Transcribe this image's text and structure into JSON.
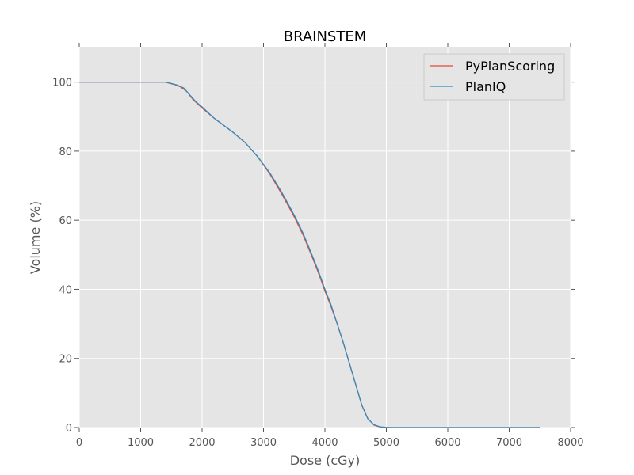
{
  "chart_data": {
    "type": "line",
    "title": "BRAINSTEM",
    "xlabel": "Dose (cGy)",
    "ylabel": "Volume (%)",
    "xlim": [
      0,
      8000
    ],
    "ylim": [
      0,
      110
    ],
    "xticks": [
      0,
      1000,
      2000,
      3000,
      4000,
      5000,
      6000,
      7000,
      8000
    ],
    "yticks": [
      0,
      20,
      40,
      60,
      80,
      100
    ],
    "grid": true,
    "legend_position": "top-right",
    "background_color": "#e5e5e5",
    "series": [
      {
        "name": "PyPlanScoring",
        "color": "#e24a33",
        "points": [
          [
            0,
            100
          ],
          [
            1000,
            100
          ],
          [
            1400,
            100
          ],
          [
            1550,
            99.3
          ],
          [
            1650,
            98.6
          ],
          [
            1750,
            97.3
          ],
          [
            1850,
            95
          ],
          [
            2000,
            92.5
          ],
          [
            2200,
            89.5
          ],
          [
            2500,
            85.5
          ],
          [
            2700,
            82.5
          ],
          [
            2900,
            78.5
          ],
          [
            3100,
            73.5
          ],
          [
            3300,
            67.5
          ],
          [
            3500,
            61
          ],
          [
            3650,
            55.5
          ],
          [
            3800,
            49
          ],
          [
            3900,
            44.5
          ],
          [
            4000,
            39.5
          ],
          [
            4100,
            35
          ],
          [
            4200,
            30
          ],
          [
            4300,
            24.5
          ],
          [
            4400,
            18.5
          ],
          [
            4500,
            12.5
          ],
          [
            4600,
            6.5
          ],
          [
            4700,
            2.5
          ],
          [
            4800,
            0.7
          ],
          [
            4900,
            0.15
          ],
          [
            5000,
            0.03
          ],
          [
            5100,
            0
          ],
          [
            6000,
            0
          ],
          [
            7500,
            0
          ]
        ]
      },
      {
        "name": "PlanIQ",
        "color": "#348abd",
        "points": [
          [
            0,
            100
          ],
          [
            1000,
            100
          ],
          [
            1400,
            100
          ],
          [
            1500,
            99.6
          ],
          [
            1600,
            99.1
          ],
          [
            1700,
            98.3
          ],
          [
            1800,
            96.3
          ],
          [
            1900,
            94.3
          ],
          [
            2000,
            92.8
          ],
          [
            2200,
            89.5
          ],
          [
            2500,
            85.5
          ],
          [
            2700,
            82.5
          ],
          [
            2900,
            78.5
          ],
          [
            3100,
            73.8
          ],
          [
            3300,
            68
          ],
          [
            3500,
            61.5
          ],
          [
            3650,
            56
          ],
          [
            3800,
            49.5
          ],
          [
            3900,
            45
          ],
          [
            4000,
            40
          ],
          [
            4100,
            35.5
          ],
          [
            4200,
            30
          ],
          [
            4300,
            24.5
          ],
          [
            4400,
            18.5
          ],
          [
            4500,
            12.5
          ],
          [
            4600,
            6.5
          ],
          [
            4700,
            2.5
          ],
          [
            4800,
            0.8
          ],
          [
            4900,
            0.2
          ],
          [
            5000,
            0.05
          ],
          [
            5100,
            0
          ],
          [
            6000,
            0
          ],
          [
            7500,
            0
          ]
        ]
      }
    ]
  }
}
